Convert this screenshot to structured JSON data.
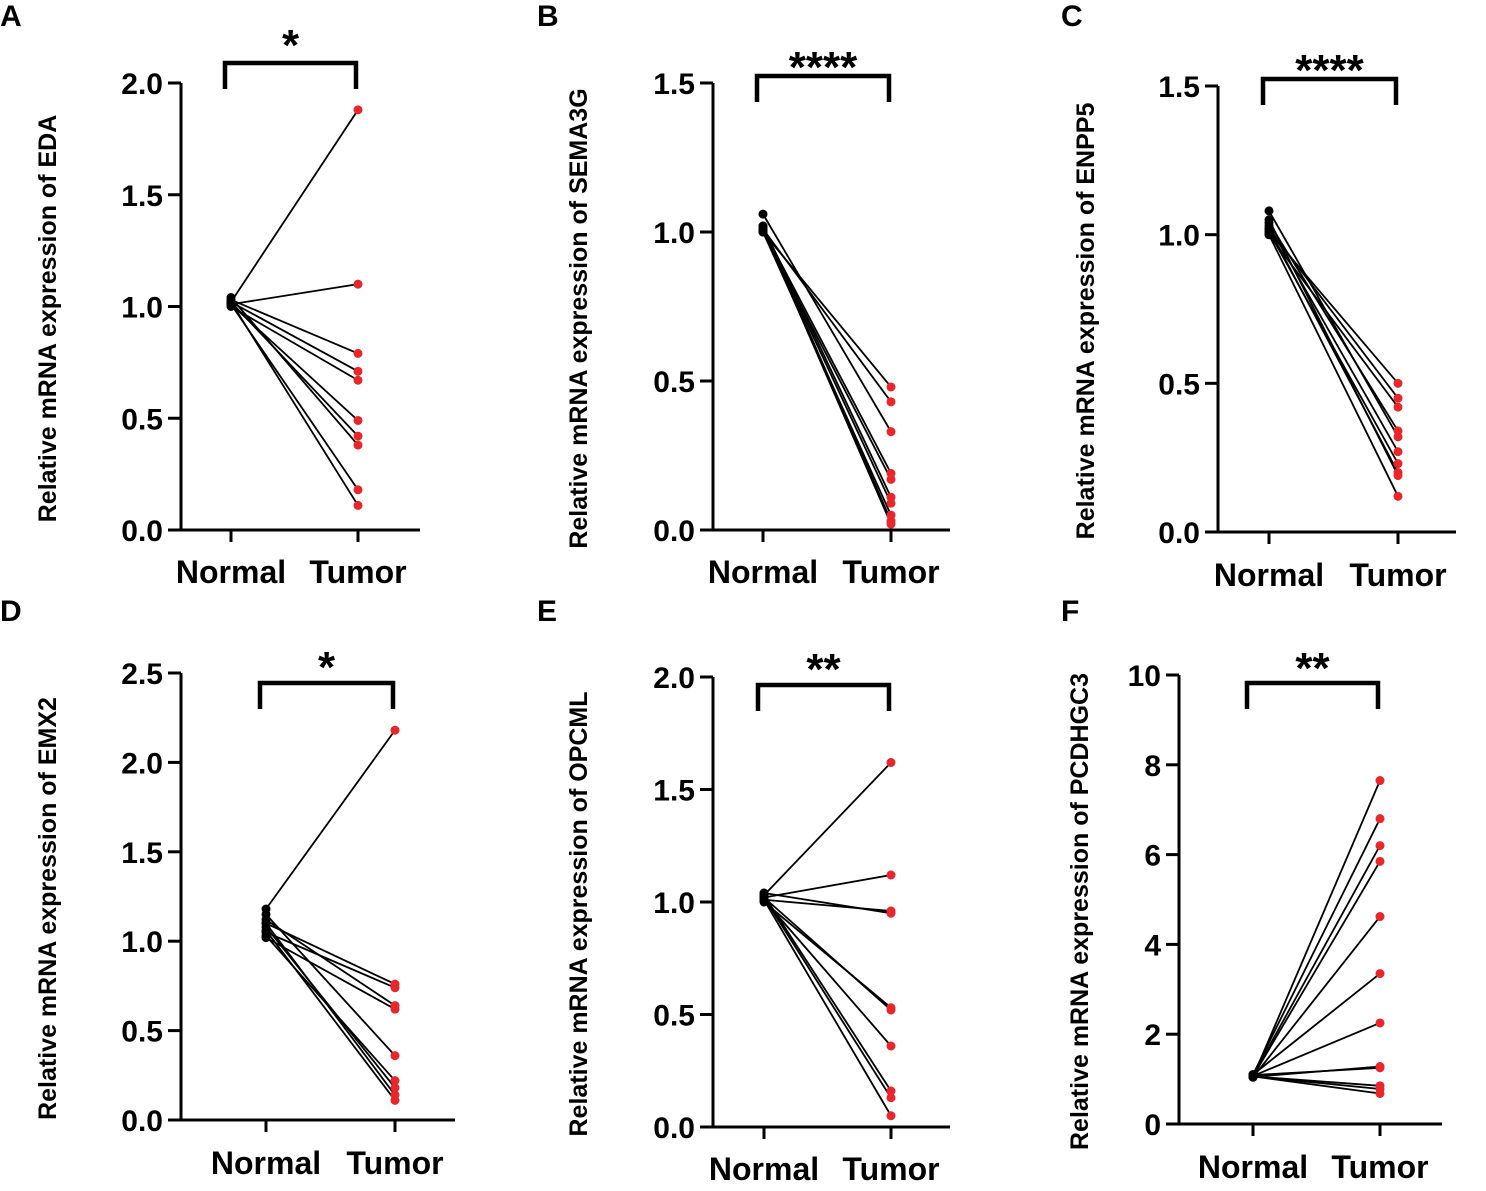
{
  "figure_colors": {
    "normal_point": "#000000",
    "tumor_point": "#e8262c",
    "line": "#000000",
    "axis": "#000000"
  },
  "chart_data": [
    {
      "panel": "A",
      "type": "scatter",
      "ylabel": "Relative mRNA expression of EDA",
      "categories": [
        "Normal",
        "Tumor"
      ],
      "significance": "*",
      "ylim": [
        0,
        2.0
      ],
      "yticks": [
        0.0,
        0.5,
        1.0,
        1.5,
        2.0
      ],
      "ytick_labels": [
        "0.0",
        "0.5",
        "1.0",
        "1.5",
        "2.0"
      ],
      "normal": [
        1.02,
        1.01,
        1.03,
        1.02,
        1.0,
        1.01,
        1.02,
        1.04,
        1.01,
        1.02
      ],
      "tumor": [
        1.88,
        1.1,
        0.79,
        0.71,
        0.67,
        0.49,
        0.42,
        0.38,
        0.18,
        0.11
      ]
    },
    {
      "panel": "B",
      "type": "scatter",
      "ylabel": "Relative mRNA expression of SEMA3G",
      "categories": [
        "Normal",
        "Tumor"
      ],
      "significance": "****",
      "ylim": [
        0,
        1.5
      ],
      "yticks": [
        0.0,
        0.5,
        1.0,
        1.5
      ],
      "ytick_labels": [
        "0.0",
        "0.5",
        "1.0",
        "1.5"
      ],
      "normal": [
        1.0,
        1.01,
        1.06,
        1.01,
        1.0,
        1.02,
        1.01,
        1.0,
        1.02,
        1.01
      ],
      "tumor": [
        0.48,
        0.43,
        0.33,
        0.19,
        0.17,
        0.11,
        0.09,
        0.05,
        0.03,
        0.02
      ]
    },
    {
      "panel": "C",
      "type": "scatter",
      "ylabel": "Relative mRNA expression of ENPP5",
      "categories": [
        "Normal",
        "Tumor"
      ],
      "significance": "****",
      "ylim": [
        0,
        1.5
      ],
      "yticks": [
        0.0,
        0.5,
        1.0,
        1.5
      ],
      "ytick_labels": [
        "0.0",
        "0.5",
        "1.0",
        "1.5"
      ],
      "normal": [
        1.01,
        1.02,
        1.0,
        1.04,
        1.08,
        1.03,
        1.01,
        1.02,
        1.05,
        1.0
      ],
      "tumor": [
        0.5,
        0.45,
        0.42,
        0.34,
        0.32,
        0.27,
        0.23,
        0.2,
        0.19,
        0.12
      ]
    },
    {
      "panel": "D",
      "type": "scatter",
      "ylabel": "Relative mRNA expression of EMX2",
      "categories": [
        "Normal",
        "Tumor"
      ],
      "significance": "*",
      "ylim": [
        0,
        2.5
      ],
      "yticks": [
        0.0,
        0.5,
        1.0,
        1.5,
        2.0,
        2.5
      ],
      "ytick_labels": [
        "0.0",
        "0.5",
        "1.0",
        "1.5",
        "2.0",
        "2.5"
      ],
      "normal": [
        1.18,
        1.1,
        1.05,
        1.12,
        1.02,
        1.15,
        1.03,
        1.08,
        1.1,
        1.06
      ],
      "tumor": [
        2.18,
        0.76,
        0.74,
        0.64,
        0.62,
        0.36,
        0.22,
        0.18,
        0.14,
        0.11
      ]
    },
    {
      "panel": "E",
      "type": "scatter",
      "ylabel": "Relative mRNA expression of OPCML",
      "categories": [
        "Normal",
        "Tumor"
      ],
      "significance": "**",
      "ylim": [
        0,
        2.0
      ],
      "yticks": [
        0.0,
        0.5,
        1.0,
        1.5,
        2.0
      ],
      "ytick_labels": [
        "0.0",
        "0.5",
        "1.0",
        "1.5",
        "2.0"
      ],
      "normal": [
        1.03,
        1.02,
        1.01,
        1.04,
        1.0,
        1.02,
        1.01,
        1.03,
        1.02,
        1.01
      ],
      "tumor": [
        1.62,
        1.12,
        0.96,
        0.95,
        0.53,
        0.52,
        0.36,
        0.16,
        0.13,
        0.05
      ]
    },
    {
      "panel": "F",
      "type": "scatter",
      "ylabel": "Relative mRNA expression of PCDHGC3",
      "categories": [
        "Normal",
        "Tumor"
      ],
      "significance": "**",
      "ylim": [
        0,
        10
      ],
      "yticks": [
        0,
        2,
        4,
        6,
        8,
        10
      ],
      "ytick_labels": [
        "0",
        "2",
        "4",
        "6",
        "8",
        "10"
      ],
      "normal": [
        1.05,
        1.1,
        1.08,
        1.06,
        1.04,
        1.1,
        1.07,
        1.05,
        1.09,
        1.06
      ],
      "tumor": [
        7.65,
        6.8,
        6.2,
        5.85,
        4.62,
        3.35,
        2.25,
        1.28,
        1.25,
        0.85,
        0.78,
        0.68
      ]
    }
  ]
}
